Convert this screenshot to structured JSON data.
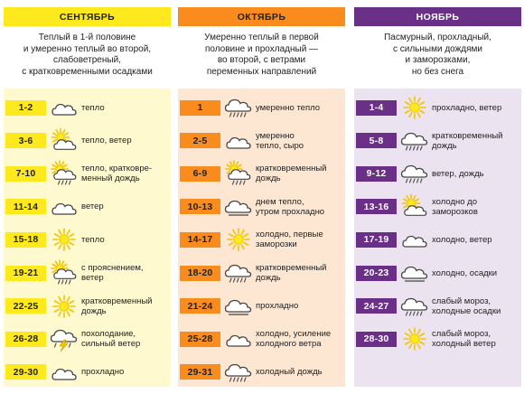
{
  "colors": {
    "yellow": "#fde91e",
    "yellow_bg": "#fff9cf",
    "orange": "#fa8c1e",
    "orange_bg": "#fde6d2",
    "purple": "#6a2f86",
    "purple_bg": "#ece3f1"
  },
  "columns": [
    {
      "month": "СЕНТЯБРЬ",
      "theme": "yellow",
      "description": [
        "Теплый в 1-й половине",
        "и умеренно теплый во второй,",
        "слабоветреный,",
        "с кратковременными осадками"
      ],
      "rows": [
        {
          "days": "1-2",
          "icon": "cloud-icon",
          "text": [
            "тепло"
          ]
        },
        {
          "days": "3-6",
          "icon": "sun-cloud-icon",
          "text": [
            "тепло, ветер"
          ]
        },
        {
          "days": "7-10",
          "icon": "sun-cloud-rain-icon",
          "text": [
            "тепло, кратковре-",
            "менный дождь"
          ]
        },
        {
          "days": "11-14",
          "icon": "cloud-icon",
          "text": [
            "ветер"
          ]
        },
        {
          "days": "15-18",
          "icon": "sun-icon",
          "text": [
            "тепло"
          ]
        },
        {
          "days": "19-21",
          "icon": "sun-cloud-rain-icon",
          "text": [
            "с прояснением,",
            "ветер"
          ]
        },
        {
          "days": "22-25",
          "icon": "sun-icon",
          "text": [
            "кратковременный",
            "дождь"
          ]
        },
        {
          "days": "26-28",
          "icon": "thunderstorm-icon",
          "text": [
            "похолодание,",
            "сильный ветер"
          ]
        },
        {
          "days": "29-30",
          "icon": "cloud-icon",
          "text": [
            "прохладно"
          ]
        }
      ]
    },
    {
      "month": "ОКТЯБРЬ",
      "theme": "orange",
      "description": [
        "Умеренно теплый в первой",
        "половине и прохладный —",
        "во второй, с ветрами",
        "переменных направлений"
      ],
      "rows": [
        {
          "days": "1",
          "icon": "cloud-rain-icon",
          "text": [
            "умеренно тепло"
          ]
        },
        {
          "days": "2-5",
          "icon": "cloud-icon",
          "text": [
            "умеренно",
            "тепло, сыро"
          ]
        },
        {
          "days": "6-9",
          "icon": "sun-cloud-rain-icon",
          "text": [
            "кратковременный",
            "дождь"
          ]
        },
        {
          "days": "10-13",
          "icon": "cloud-outline-icon",
          "text": [
            "днем тепло,",
            "утром прохладно"
          ]
        },
        {
          "days": "14-17",
          "icon": "sun-icon",
          "text": [
            "холодно, первые",
            "заморозки"
          ]
        },
        {
          "days": "18-20",
          "icon": "cloud-rain-icon",
          "text": [
            "кратковременный",
            "дождь"
          ]
        },
        {
          "days": "21-24",
          "icon": "cloud-outline-icon",
          "text": [
            "прохладно"
          ]
        },
        {
          "days": "25-28",
          "icon": "cloud-icon",
          "text": [
            "холодно, усиление",
            "холодного ветра"
          ]
        },
        {
          "days": "29-31",
          "icon": "cloud-rain-icon",
          "text": [
            "холодный дождь"
          ]
        }
      ]
    },
    {
      "month": "НОЯБРЬ",
      "theme": "purple",
      "description": [
        "Пасмурный, прохладный,",
        "с сильными дождями",
        "и заморозками,",
        "но без снега"
      ],
      "rows": [
        {
          "days": "1-4",
          "icon": "sun-icon",
          "text": [
            "прохладно, ветер"
          ]
        },
        {
          "days": "5-8",
          "icon": "cloud-rain-icon",
          "text": [
            "кратковременный",
            "дождь"
          ]
        },
        {
          "days": "9-12",
          "icon": "cloud-rain-icon",
          "text": [
            "ветер, дождь"
          ]
        },
        {
          "days": "13-16",
          "icon": "sun-cloud-icon",
          "text": [
            "холодно до",
            "заморозков"
          ]
        },
        {
          "days": "17-19",
          "icon": "cloud-icon",
          "text": [
            "холодно, ветер"
          ]
        },
        {
          "days": "20-23",
          "icon": "cloud-outline-icon",
          "text": [
            "холодно, осадки"
          ]
        },
        {
          "days": "24-27",
          "icon": "cloud-rain-icon",
          "text": [
            "слабый мороз,",
            "холодные осадки"
          ]
        },
        {
          "days": "28-30",
          "icon": "sun-icon",
          "text": [
            "слабый мороз,",
            "холодный ветер"
          ]
        }
      ]
    }
  ]
}
